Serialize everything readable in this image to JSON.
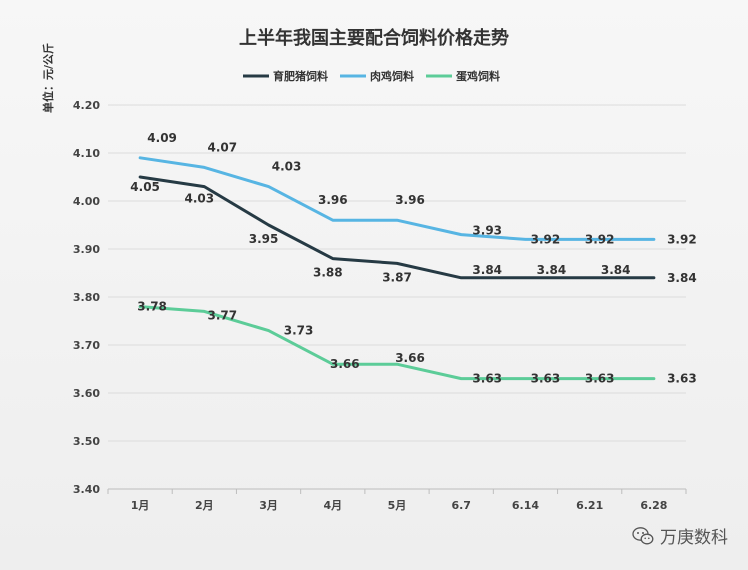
{
  "chart_data": {
    "type": "line",
    "title": "上半年我国主要配合饲料价格走势",
    "ylabel": "单位：元/公斤",
    "xlabel": "",
    "categories": [
      "1月",
      "2月",
      "3月",
      "4月",
      "5月",
      "6.7",
      "6.14",
      "6.21",
      "6.28"
    ],
    "ylim": [
      3.4,
      4.2
    ],
    "yticks": [
      "3.40",
      "3.50",
      "3.60",
      "3.70",
      "3.80",
      "3.90",
      "4.00",
      "4.10",
      "4.20"
    ],
    "legend_position": "top-center",
    "grid": true,
    "series": [
      {
        "name": "育肥猪饲料",
        "color": "#263a44",
        "values": [
          4.05,
          4.03,
          3.95,
          3.88,
          3.87,
          3.84,
          3.84,
          3.84,
          3.84
        ]
      },
      {
        "name": "肉鸡饲料",
        "color": "#57b5e3",
        "values": [
          4.09,
          4.07,
          4.03,
          3.96,
          3.96,
          3.93,
          3.92,
          3.92,
          3.92
        ]
      },
      {
        "name": "蛋鸡饲料",
        "color": "#5ccc98",
        "values": [
          3.78,
          3.77,
          3.73,
          3.66,
          3.66,
          3.63,
          3.63,
          3.63,
          3.63
        ]
      }
    ]
  },
  "watermark": {
    "text": "万庚数科",
    "icon": "wechat-icon"
  }
}
